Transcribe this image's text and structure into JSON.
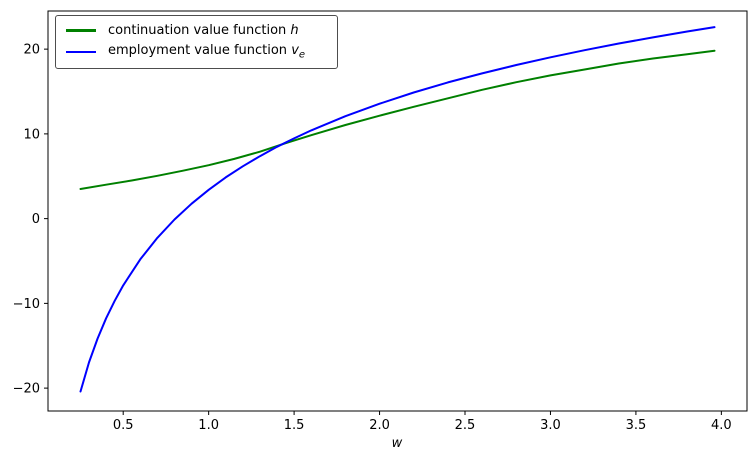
{
  "figure": {
    "background": "#ffffff",
    "frame_color": "#000000"
  },
  "legend": {
    "entries": [
      {
        "label": "continuation value function",
        "symbol": "h",
        "sub": "",
        "color": "#008000"
      },
      {
        "label": "employment value function",
        "symbol": "v",
        "sub": "e",
        "color": "#0000ff"
      }
    ]
  },
  "chart_data": {
    "type": "line",
    "title": "",
    "xlabel": "w",
    "ylabel": "",
    "xlim": [
      0.06,
      4.15
    ],
    "ylim": [
      -22.7,
      24.5
    ],
    "grid": false,
    "legend_position": "upper left",
    "x_ticks": {
      "values": [
        0.5,
        1.0,
        1.5,
        2.0,
        2.5,
        3.0,
        3.5,
        4.0
      ],
      "labels": [
        "0.5",
        "1.0",
        "1.5",
        "2.0",
        "2.5",
        "3.0",
        "3.5",
        "4.0"
      ]
    },
    "y_ticks": {
      "values": [
        20,
        10,
        0,
        -10,
        -20
      ],
      "labels": [
        "20",
        "10",
        "0",
        "−10",
        "−20"
      ]
    },
    "series": [
      {
        "name": "continuation value function h",
        "color": "#008000",
        "line_width": 2,
        "points": [
          [
            0.25,
            3.5
          ],
          [
            0.4,
            4.0
          ],
          [
            0.55,
            4.5
          ],
          [
            0.7,
            5.05
          ],
          [
            0.85,
            5.65
          ],
          [
            1.0,
            6.3
          ],
          [
            1.15,
            7.05
          ],
          [
            1.3,
            7.9
          ],
          [
            1.45,
            8.9
          ],
          [
            1.6,
            9.85
          ],
          [
            1.8,
            11.05
          ],
          [
            2.0,
            12.15
          ],
          [
            2.2,
            13.2
          ],
          [
            2.4,
            14.2
          ],
          [
            2.6,
            15.2
          ],
          [
            2.8,
            16.1
          ],
          [
            3.0,
            16.9
          ],
          [
            3.2,
            17.6
          ],
          [
            3.4,
            18.3
          ],
          [
            3.6,
            18.9
          ],
          [
            3.8,
            19.4
          ],
          [
            3.96,
            19.8
          ]
        ]
      },
      {
        "name": "employment value function v_e",
        "color": "#0000ff",
        "line_width": 2,
        "points": [
          [
            0.25,
            -20.4
          ],
          [
            0.3,
            -16.97
          ],
          [
            0.35,
            -14.15
          ],
          [
            0.4,
            -11.76
          ],
          [
            0.45,
            -9.7
          ],
          [
            0.5,
            -7.88
          ],
          [
            0.6,
            -4.8
          ],
          [
            0.7,
            -2.26
          ],
          [
            0.8,
            -0.1
          ],
          [
            0.9,
            1.76
          ],
          [
            1.0,
            3.4
          ],
          [
            1.1,
            4.86
          ],
          [
            1.2,
            6.18
          ],
          [
            1.3,
            7.37
          ],
          [
            1.4,
            8.47
          ],
          [
            1.5,
            9.47
          ],
          [
            1.6,
            10.41
          ],
          [
            1.8,
            12.09
          ],
          [
            2.0,
            13.56
          ],
          [
            2.2,
            14.88
          ],
          [
            2.4,
            16.07
          ],
          [
            2.6,
            17.14
          ],
          [
            2.8,
            18.13
          ],
          [
            3.0,
            19.04
          ],
          [
            3.2,
            19.88
          ],
          [
            3.4,
            20.66
          ],
          [
            3.6,
            21.39
          ],
          [
            3.8,
            22.08
          ],
          [
            3.96,
            22.6
          ]
        ]
      }
    ]
  }
}
